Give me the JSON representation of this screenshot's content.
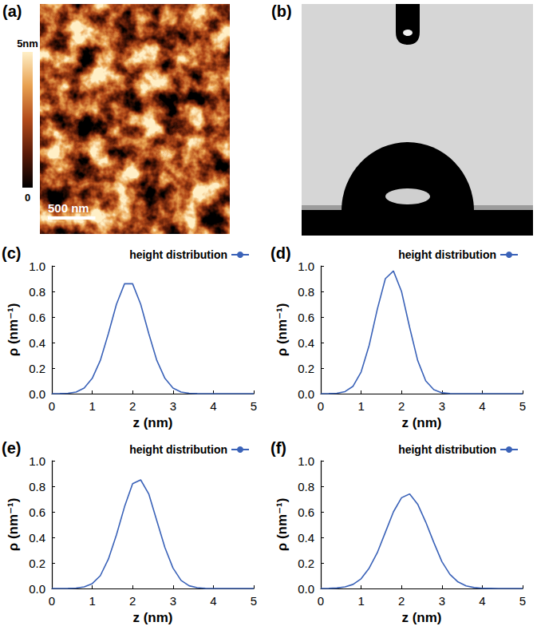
{
  "afm_image": {
    "label": "(a)",
    "colorbar": {
      "range": [
        0,
        5
      ],
      "ticks": [
        0,
        {
          "value": 5,
          "label": "5nm"
        }
      ]
    },
    "image_width_nm": 2000,
    "scale_bar": {
      "value": 500,
      "label": "500 nm"
    }
  },
  "contact_angle_image": {
    "label": "(b)"
  },
  "chart_data": [
    {
      "type": "line",
      "label": "(c)",
      "xlabel": "z (nm)",
      "ylabel": "ρ (nm⁻¹)",
      "x": [
        0,
        0.2,
        0.4,
        0.6,
        0.8,
        1,
        1.2,
        1.4,
        1.6,
        1.8,
        2,
        2.2,
        2.4,
        2.6,
        2.8,
        3,
        3.2,
        3.4,
        3.6,
        3.8,
        4,
        4.2,
        4.4,
        4.6,
        4.8,
        5
      ],
      "series": [
        {
          "name": "height distribution",
          "color": "#3a62b8",
          "values": [
            0,
            0.001,
            0.003,
            0.013,
            0.044,
            0.12,
            0.26,
            0.47,
            0.7,
            0.86,
            0.86,
            0.7,
            0.47,
            0.26,
            0.12,
            0.044,
            0.013,
            0.003,
            0.001,
            0,
            0,
            0,
            0,
            0,
            0,
            0
          ]
        }
      ],
      "xlim": [
        0,
        5
      ],
      "xticks": [
        0,
        1,
        2,
        3,
        4,
        5
      ],
      "ylim": [
        0,
        1
      ],
      "yticks": [
        {
          "value": 0,
          "label": "0.0"
        },
        0.2,
        0.4,
        0.6,
        0.8,
        {
          "value": 1,
          "label": "1.0"
        }
      ],
      "grid": false,
      "legend": "top right"
    },
    {
      "type": "line",
      "label": "(d)",
      "xlabel": "z (nm)",
      "ylabel": "ρ (nm⁻¹)",
      "x": [
        0,
        0.2,
        0.4,
        0.6,
        0.8,
        1,
        1.2,
        1.4,
        1.6,
        1.8,
        2,
        2.2,
        2.4,
        2.6,
        2.8,
        3,
        3.2,
        3.4,
        3.6,
        3.8,
        4,
        4.2,
        4.4,
        4.6,
        4.8,
        5
      ],
      "series": [
        {
          "name": "height distribution",
          "color": "#3a62b8",
          "values": [
            0,
            0.001,
            0.003,
            0.016,
            0.058,
            0.17,
            0.38,
            0.66,
            0.9,
            0.96,
            0.8,
            0.52,
            0.26,
            0.1,
            0.031,
            0.007,
            0.001,
            0,
            0,
            0,
            0,
            0,
            0,
            0,
            0,
            0
          ]
        }
      ],
      "xlim": [
        0,
        5
      ],
      "xticks": [
        0,
        1,
        2,
        3,
        4,
        5
      ],
      "ylim": [
        0,
        1
      ],
      "yticks": [
        {
          "value": 0,
          "label": "0.0"
        },
        0.2,
        0.4,
        0.6,
        0.8,
        {
          "value": 1,
          "label": "1.0"
        }
      ],
      "grid": false,
      "legend": "top right"
    },
    {
      "type": "line",
      "label": "(e)",
      "xlabel": "z (nm)",
      "ylabel": "ρ (nm⁻¹)",
      "x": [
        0,
        0.2,
        0.4,
        0.6,
        0.8,
        1,
        1.2,
        1.4,
        1.6,
        1.8,
        2,
        2.2,
        2.4,
        2.6,
        2.8,
        3,
        3.2,
        3.4,
        3.6,
        3.8,
        4,
        4.2,
        4.4,
        4.6,
        4.8,
        5
      ],
      "series": [
        {
          "name": "height distribution",
          "color": "#3a62b8",
          "values": [
            0,
            0,
            0.001,
            0.003,
            0.012,
            0.038,
            0.1,
            0.23,
            0.42,
            0.64,
            0.82,
            0.85,
            0.74,
            0.53,
            0.32,
            0.16,
            0.063,
            0.021,
            0.006,
            0.001,
            0,
            0,
            0,
            0,
            0,
            0
          ]
        }
      ],
      "xlim": [
        0,
        5
      ],
      "xticks": [
        0,
        1,
        2,
        3,
        4,
        5
      ],
      "ylim": [
        0,
        1
      ],
      "yticks": [
        {
          "value": 0,
          "label": "0.0"
        },
        0.2,
        0.4,
        0.6,
        0.8,
        {
          "value": 1,
          "label": "1.0"
        }
      ],
      "grid": false,
      "legend": "top right"
    },
    {
      "type": "line",
      "label": "(f)",
      "xlabel": "z (nm)",
      "ylabel": "ρ (nm⁻¹)",
      "x": [
        0,
        0.2,
        0.4,
        0.6,
        0.8,
        1,
        1.2,
        1.4,
        1.6,
        1.8,
        2,
        2.2,
        2.4,
        2.6,
        2.8,
        3,
        3.2,
        3.4,
        3.6,
        3.8,
        4,
        4.2,
        4.4,
        4.6,
        4.8,
        5
      ],
      "series": [
        {
          "name": "height distribution",
          "color": "#3a62b8",
          "values": [
            0,
            0.001,
            0.004,
            0.012,
            0.032,
            0.076,
            0.16,
            0.28,
            0.44,
            0.6,
            0.71,
            0.74,
            0.66,
            0.52,
            0.36,
            0.21,
            0.11,
            0.051,
            0.02,
            0.007,
            0.002,
            0.001,
            0,
            0,
            0,
            0
          ]
        }
      ],
      "xlim": [
        0,
        5
      ],
      "xticks": [
        0,
        1,
        2,
        3,
        4,
        5
      ],
      "ylim": [
        0,
        1
      ],
      "yticks": [
        {
          "value": 0,
          "label": "0.0"
        },
        0.2,
        0.4,
        0.6,
        0.8,
        {
          "value": 1,
          "label": "1.0"
        }
      ],
      "grid": false,
      "legend": "top right"
    }
  ]
}
